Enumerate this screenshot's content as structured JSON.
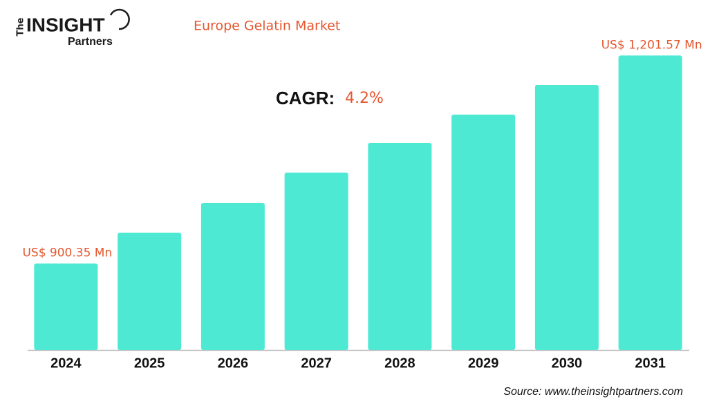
{
  "logo": {
    "prefix": "The",
    "name": "INSIGHT",
    "suffix": "Partners"
  },
  "chart_data": {
    "type": "bar",
    "title": "Europe Gelatin Market",
    "categories": [
      "2024",
      "2025",
      "2026",
      "2027",
      "2028",
      "2029",
      "2030",
      "2031"
    ],
    "values": [
      900.35,
      945,
      988,
      1032,
      1075,
      1116,
      1159,
      1201.57
    ],
    "value_labels": [
      "US$ 900.35 Mn",
      null,
      null,
      null,
      null,
      null,
      null,
      "US$ 1,201.57 Mn"
    ],
    "color": "#4ee9d3",
    "label_color": "#e4572e",
    "ylim": [
      775,
      1215
    ],
    "cagr_label": "CAGR:",
    "cagr_value": "4.2%",
    "source": "Source: www.theinsightpartners.com"
  }
}
